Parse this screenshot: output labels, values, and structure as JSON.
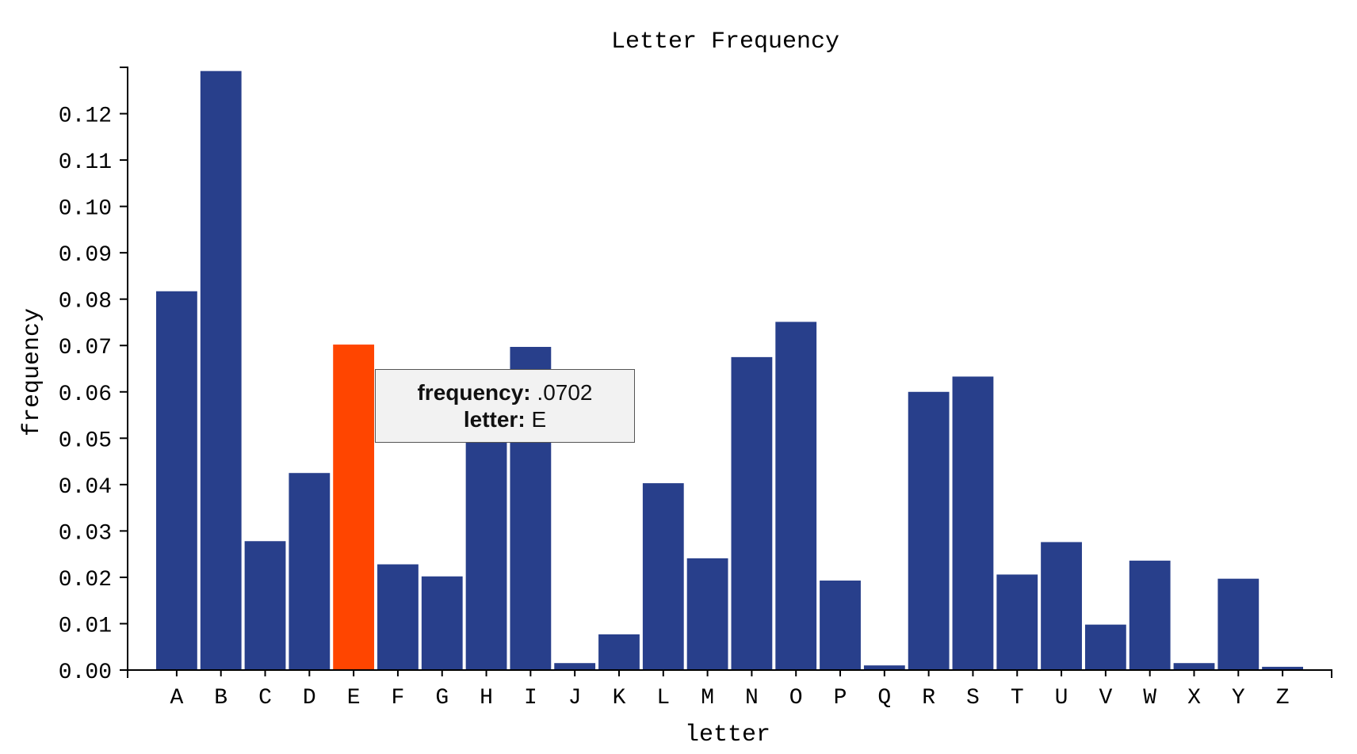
{
  "chart_data": {
    "type": "bar",
    "title": "Letter Frequency",
    "xlabel": "letter",
    "ylabel": "frequency",
    "ylim": [
      0,
      0.13
    ],
    "yticks": [
      "0.00",
      "0.01",
      "0.02",
      "0.03",
      "0.04",
      "0.05",
      "0.06",
      "0.07",
      "0.08",
      "0.09",
      "0.10",
      "0.11",
      "0.12"
    ],
    "categories": [
      "A",
      "B",
      "C",
      "D",
      "E",
      "F",
      "G",
      "H",
      "I",
      "J",
      "K",
      "L",
      "M",
      "N",
      "O",
      "P",
      "Q",
      "R",
      "S",
      "T",
      "U",
      "V",
      "W",
      "X",
      "Y",
      "Z"
    ],
    "values": [
      0.0817,
      0.1292,
      0.0278,
      0.0425,
      0.0702,
      0.0228,
      0.0202,
      0.0609,
      0.0697,
      0.0015,
      0.0077,
      0.0403,
      0.0241,
      0.0675,
      0.0751,
      0.0193,
      0.001,
      0.06,
      0.0633,
      0.0206,
      0.0276,
      0.0098,
      0.0236,
      0.0015,
      0.0197,
      0.0007
    ],
    "highlighted": "E",
    "colors": {
      "bar": "#283f8b",
      "highlight": "#ff4500",
      "axis": "#000000"
    },
    "grid": false
  },
  "tooltip": {
    "frequency_label": "frequency:",
    "frequency_value": ".0702",
    "letter_label": "letter:",
    "letter_value": "E"
  }
}
